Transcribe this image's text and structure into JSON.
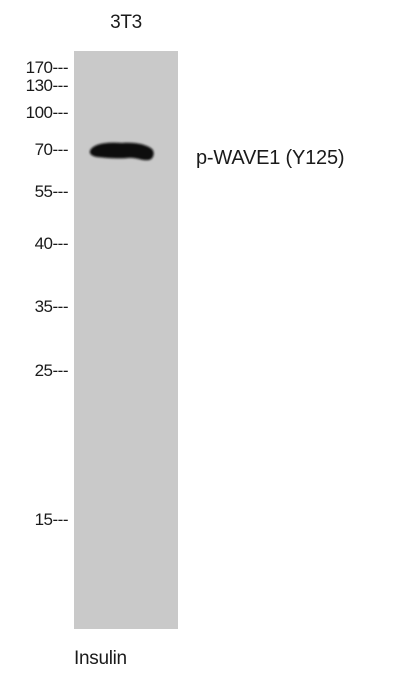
{
  "lane": {
    "label": "3T3",
    "treatment": "Insulin"
  },
  "markers": [
    {
      "label": "170---"
    },
    {
      "label": "130---"
    },
    {
      "label": "100---"
    },
    {
      "label": "70---"
    },
    {
      "label": "55---"
    },
    {
      "label": "40---"
    },
    {
      "label": "35---"
    },
    {
      "label": "25---"
    },
    {
      "label": "15---"
    }
  ],
  "band": {
    "label": "p-WAVE1 (Y125)",
    "color": "#0d0d0d"
  },
  "colors": {
    "lane_background": "#c9c9c9",
    "page_background": "#ffffff"
  }
}
